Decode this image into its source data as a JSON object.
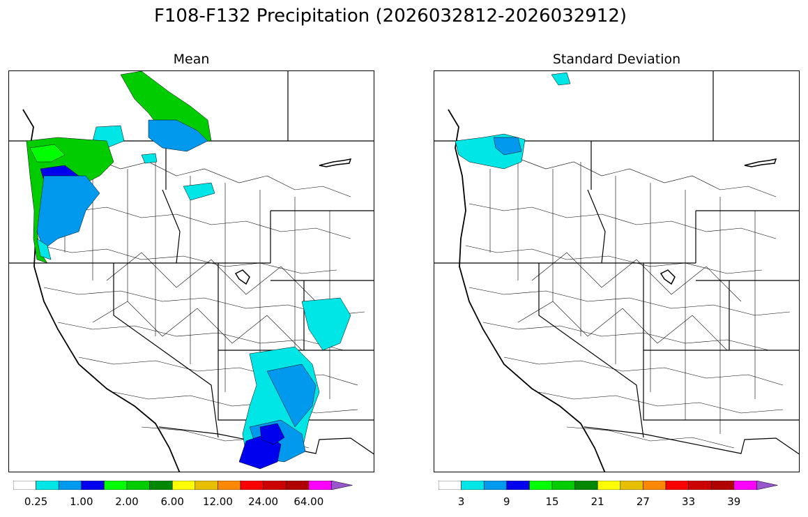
{
  "title": "F108-F132 Precipitation (2026032812-2026032912)",
  "panels": [
    {
      "title": "Mean"
    },
    {
      "title": "Standard Deviation"
    }
  ],
  "colorbar_colors": [
    "#ffffff",
    "#00e5e5",
    "#0099ee",
    "#0000ee",
    "#00ff00",
    "#00cc00",
    "#008800",
    "#ffff00",
    "#e6bf00",
    "#ff8800",
    "#ff0000",
    "#cc0000",
    "#b00000",
    "#ff00ff",
    "#9955cc"
  ],
  "colorbars": [
    {
      "ticks": [
        "0.25",
        "1.00",
        "2.00",
        "6.00",
        "12.00",
        "24.00",
        "64.00"
      ]
    },
    {
      "ticks": [
        "3",
        "9",
        "15",
        "21",
        "27",
        "33",
        "39"
      ]
    }
  ],
  "map_region": "Western United States basins",
  "mean_shading": {
    "pacific_northwest_coast": "blue-green (0.25-6.00)",
    "northern_idaho_montana_border": "green (2.00-6.00)",
    "arizona_new_mexico_south": "cyan to blue (0.25-2.00)",
    "colorado_east": "cyan (0.25-1.00)"
  },
  "std_shading": {
    "puget_sound_region": "cyan to blue (3-9)",
    "north_cascades_tip": "cyan (3)"
  }
}
